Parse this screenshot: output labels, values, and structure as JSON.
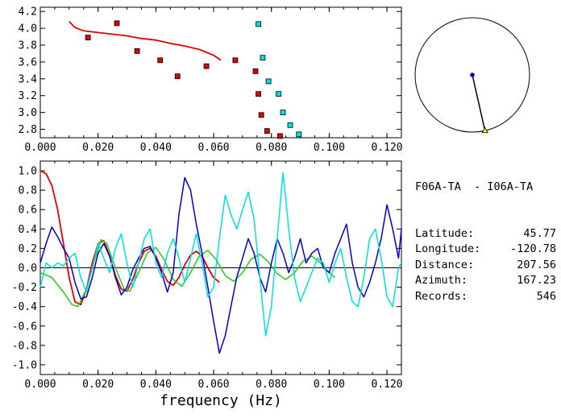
{
  "info": {
    "title": "F06A-TA  - I06A-TA",
    "rows": [
      {
        "label": "Latitude:",
        "value": "45.77"
      },
      {
        "label": "Longitude:",
        "value": "-120.78"
      },
      {
        "label": "Distance:",
        "value": "207.56"
      },
      {
        "label": "Azimuth:",
        "value": "167.23"
      },
      {
        "label": "Records:",
        "value": "546"
      }
    ]
  },
  "colors": {
    "red": "#e00000",
    "green": "#22cc22",
    "blue": "#0000c8",
    "cyan": "#00e0e0",
    "dispersion_red_marker": "#e00000",
    "dispersion_cyan_marker": "#00e0e0"
  },
  "chart_data": [
    {
      "type": "scatter",
      "xlabel": "",
      "xlim": [
        0.0,
        0.125
      ],
      "ylim": [
        2.7,
        4.25
      ],
      "xticks": [
        "0.000",
        "0.020",
        "0.040",
        "0.060",
        "0.080",
        "0.100",
        "0.120"
      ],
      "yticks": [
        "2.8",
        "3.0",
        "3.2",
        "3.4",
        "3.6",
        "3.8",
        "4.0",
        "4.2"
      ],
      "series": [
        {
          "marker": "red-square",
          "points": [
            [
              0.0165,
              3.89
            ],
            [
              0.0265,
              4.06
            ],
            [
              0.0335,
              3.73
            ],
            [
              0.0415,
              3.62
            ],
            [
              0.0475,
              3.43
            ],
            [
              0.0575,
              3.55
            ],
            [
              0.0675,
              3.62
            ],
            [
              0.0745,
              3.49
            ],
            [
              0.0755,
              3.22
            ],
            [
              0.0765,
              2.97
            ],
            [
              0.0785,
              2.78
            ],
            [
              0.083,
              2.72
            ]
          ]
        },
        {
          "marker": "cyan-square",
          "points": [
            [
              0.0755,
              4.05
            ],
            [
              0.077,
              3.65
            ],
            [
              0.079,
              3.37
            ],
            [
              0.0825,
              3.22
            ],
            [
              0.084,
              3.0
            ],
            [
              0.0865,
              2.85
            ],
            [
              0.0895,
              2.74
            ]
          ]
        },
        {
          "style": "red-line",
          "points": [
            [
              0.01,
              4.08
            ],
            [
              0.012,
              4.01
            ],
            [
              0.015,
              3.97
            ],
            [
              0.02,
              3.95
            ],
            [
              0.025,
              3.93
            ],
            [
              0.03,
              3.91
            ],
            [
              0.035,
              3.88
            ],
            [
              0.04,
              3.86
            ],
            [
              0.045,
              3.82
            ],
            [
              0.05,
              3.79
            ],
            [
              0.055,
              3.75
            ],
            [
              0.06,
              3.68
            ],
            [
              0.0625,
              3.62
            ]
          ]
        }
      ]
    },
    {
      "type": "line",
      "xlabel": "frequency (Hz)",
      "xlim": [
        0.0,
        0.125
      ],
      "ylim": [
        -1.1,
        1.1
      ],
      "xticks": [
        "0.000",
        "0.020",
        "0.040",
        "0.060",
        "0.080",
        "0.100",
        "0.120"
      ],
      "yticks": [
        "1.0",
        "0.8",
        "0.6",
        "0.4",
        "0.2",
        "0.0",
        "-0.2",
        "-0.4",
        "-0.6",
        "-0.8",
        "-1.0"
      ],
      "series": [
        {
          "color": "red",
          "points": [
            [
              0.0,
              1.0
            ],
            [
              0.002,
              0.97
            ],
            [
              0.004,
              0.85
            ],
            [
              0.006,
              0.6
            ],
            [
              0.008,
              0.25
            ],
            [
              0.01,
              -0.1
            ],
            [
              0.012,
              -0.35
            ],
            [
              0.014,
              -0.38
            ],
            [
              0.016,
              -0.22
            ],
            [
              0.018,
              0.05
            ],
            [
              0.02,
              0.25
            ],
            [
              0.022,
              0.28
            ],
            [
              0.024,
              0.12
            ],
            [
              0.026,
              -0.08
            ],
            [
              0.028,
              -0.22
            ],
            [
              0.03,
              -0.24
            ],
            [
              0.032,
              -0.12
            ],
            [
              0.034,
              0.05
            ],
            [
              0.036,
              0.17
            ],
            [
              0.038,
              0.2
            ],
            [
              0.04,
              0.12
            ],
            [
              0.042,
              -0.02
            ],
            [
              0.044,
              -0.14
            ],
            [
              0.046,
              -0.18
            ],
            [
              0.048,
              -0.1
            ],
            [
              0.05,
              0.03
            ],
            [
              0.052,
              0.13
            ],
            [
              0.054,
              0.17
            ],
            [
              0.056,
              0.12
            ],
            [
              0.058,
              0.0
            ],
            [
              0.06,
              -0.1
            ],
            [
              0.062,
              -0.15
            ]
          ]
        },
        {
          "color": "green",
          "points": [
            [
              0.0,
              -0.05
            ],
            [
              0.004,
              -0.1
            ],
            [
              0.008,
              -0.25
            ],
            [
              0.011,
              -0.38
            ],
            [
              0.013,
              -0.4
            ],
            [
              0.016,
              -0.22
            ],
            [
              0.019,
              0.1
            ],
            [
              0.021,
              0.29
            ],
            [
              0.023,
              0.25
            ],
            [
              0.026,
              0.0
            ],
            [
              0.029,
              -0.22
            ],
            [
              0.031,
              -0.24
            ],
            [
              0.034,
              -0.05
            ],
            [
              0.037,
              0.15
            ],
            [
              0.04,
              0.21
            ],
            [
              0.043,
              0.08
            ],
            [
              0.046,
              -0.12
            ],
            [
              0.049,
              -0.19
            ],
            [
              0.052,
              -0.05
            ],
            [
              0.055,
              0.12
            ],
            [
              0.058,
              0.18
            ],
            [
              0.061,
              0.08
            ],
            [
              0.064,
              -0.08
            ],
            [
              0.067,
              -0.14
            ],
            [
              0.07,
              -0.05
            ],
            [
              0.073,
              0.09
            ],
            [
              0.076,
              0.14
            ],
            [
              0.079,
              0.06
            ],
            [
              0.082,
              -0.06
            ],
            [
              0.085,
              -0.12
            ],
            [
              0.088,
              -0.05
            ],
            [
              0.091,
              0.07
            ],
            [
              0.094,
              0.12
            ],
            [
              0.097,
              0.05
            ],
            [
              0.1,
              -0.05
            ],
            [
              0.102,
              -0.1
            ]
          ]
        },
        {
          "color": "blue",
          "points": [
            [
              0.0,
              0.05
            ],
            [
              0.002,
              0.25
            ],
            [
              0.004,
              0.42
            ],
            [
              0.006,
              0.32
            ],
            [
              0.008,
              0.2
            ],
            [
              0.01,
              0.1
            ],
            [
              0.012,
              -0.15
            ],
            [
              0.014,
              -0.32
            ],
            [
              0.016,
              -0.3
            ],
            [
              0.018,
              -0.1
            ],
            [
              0.02,
              0.15
            ],
            [
              0.022,
              0.25
            ],
            [
              0.024,
              0.12
            ],
            [
              0.026,
              -0.1
            ],
            [
              0.028,
              -0.28
            ],
            [
              0.03,
              -0.2
            ],
            [
              0.032,
              -0.02
            ],
            [
              0.034,
              0.1
            ],
            [
              0.036,
              0.2
            ],
            [
              0.038,
              0.22
            ],
            [
              0.04,
              0.1
            ],
            [
              0.042,
              -0.05
            ],
            [
              0.044,
              -0.25
            ],
            [
              0.046,
              -0.05
            ],
            [
              0.048,
              0.55
            ],
            [
              0.05,
              0.93
            ],
            [
              0.052,
              0.8
            ],
            [
              0.054,
              0.45
            ],
            [
              0.056,
              0.15
            ],
            [
              0.058,
              -0.2
            ],
            [
              0.06,
              -0.55
            ],
            [
              0.062,
              -0.88
            ],
            [
              0.064,
              -0.7
            ],
            [
              0.066,
              -0.4
            ],
            [
              0.068,
              -0.1
            ],
            [
              0.07,
              0.1
            ],
            [
              0.072,
              0.3
            ],
            [
              0.074,
              0.15
            ],
            [
              0.076,
              -0.1
            ],
            [
              0.078,
              -0.25
            ],
            [
              0.08,
              0.05
            ],
            [
              0.082,
              0.3
            ],
            [
              0.084,
              0.15
            ],
            [
              0.086,
              -0.05
            ],
            [
              0.088,
              0.1
            ],
            [
              0.09,
              0.3
            ],
            [
              0.092,
              0.05
            ],
            [
              0.094,
              0.15
            ],
            [
              0.096,
              0.2
            ],
            [
              0.098,
              0.0
            ],
            [
              0.1,
              -0.05
            ],
            [
              0.102,
              0.15
            ],
            [
              0.104,
              0.3
            ],
            [
              0.106,
              0.45
            ],
            [
              0.108,
              0.05
            ],
            [
              0.11,
              -0.2
            ],
            [
              0.112,
              -0.3
            ],
            [
              0.114,
              -0.15
            ],
            [
              0.116,
              0.05
            ],
            [
              0.118,
              0.3
            ],
            [
              0.12,
              0.65
            ],
            [
              0.122,
              0.4
            ],
            [
              0.124,
              0.1
            ],
            [
              0.125,
              0.4
            ]
          ]
        },
        {
          "color": "cyan",
          "points": [
            [
              0.0,
              -0.2
            ],
            [
              0.002,
              0.05
            ],
            [
              0.004,
              0.0
            ],
            [
              0.006,
              0.05
            ],
            [
              0.008,
              0.02
            ],
            [
              0.01,
              0.1
            ],
            [
              0.012,
              0.15
            ],
            [
              0.014,
              -0.1
            ],
            [
              0.016,
              -0.25
            ],
            [
              0.018,
              0.0
            ],
            [
              0.02,
              0.25
            ],
            [
              0.022,
              0.1
            ],
            [
              0.024,
              -0.05
            ],
            [
              0.026,
              0.2
            ],
            [
              0.028,
              0.35
            ],
            [
              0.03,
              0.05
            ],
            [
              0.032,
              -0.2
            ],
            [
              0.034,
              0.05
            ],
            [
              0.036,
              0.3
            ],
            [
              0.038,
              0.4
            ],
            [
              0.04,
              0.05
            ],
            [
              0.042,
              -0.1
            ],
            [
              0.044,
              0.15
            ],
            [
              0.046,
              0.3
            ],
            [
              0.048,
              0.1
            ],
            [
              0.05,
              -0.15
            ],
            [
              0.052,
              0.1
            ],
            [
              0.054,
              0.35
            ],
            [
              0.056,
              0.05
            ],
            [
              0.058,
              -0.3
            ],
            [
              0.06,
              -0.2
            ],
            [
              0.062,
              0.3
            ],
            [
              0.064,
              0.75
            ],
            [
              0.066,
              0.55
            ],
            [
              0.068,
              0.4
            ],
            [
              0.07,
              0.6
            ],
            [
              0.072,
              0.78
            ],
            [
              0.074,
              0.5
            ],
            [
              0.076,
              -0.1
            ],
            [
              0.078,
              -0.7
            ],
            [
              0.08,
              -0.4
            ],
            [
              0.082,
              0.3
            ],
            [
              0.084,
              0.98
            ],
            [
              0.086,
              0.4
            ],
            [
              0.088,
              -0.1
            ],
            [
              0.09,
              -0.35
            ],
            [
              0.092,
              -0.2
            ],
            [
              0.094,
              -0.05
            ],
            [
              0.096,
              0.1
            ],
            [
              0.098,
              0.05
            ],
            [
              0.1,
              -0.15
            ],
            [
              0.102,
              0.05
            ],
            [
              0.104,
              0.2
            ],
            [
              0.106,
              -0.1
            ],
            [
              0.108,
              -0.35
            ],
            [
              0.11,
              -0.4
            ],
            [
              0.112,
              -0.1
            ],
            [
              0.114,
              0.3
            ],
            [
              0.116,
              0.4
            ],
            [
              0.118,
              0.1
            ],
            [
              0.12,
              -0.3
            ],
            [
              0.122,
              -0.4
            ],
            [
              0.124,
              0.0
            ],
            [
              0.125,
              0.05
            ]
          ]
        }
      ]
    },
    {
      "type": "scatter",
      "subtype": "azimuth-dial",
      "azimuth_deg": 167.23
    }
  ]
}
